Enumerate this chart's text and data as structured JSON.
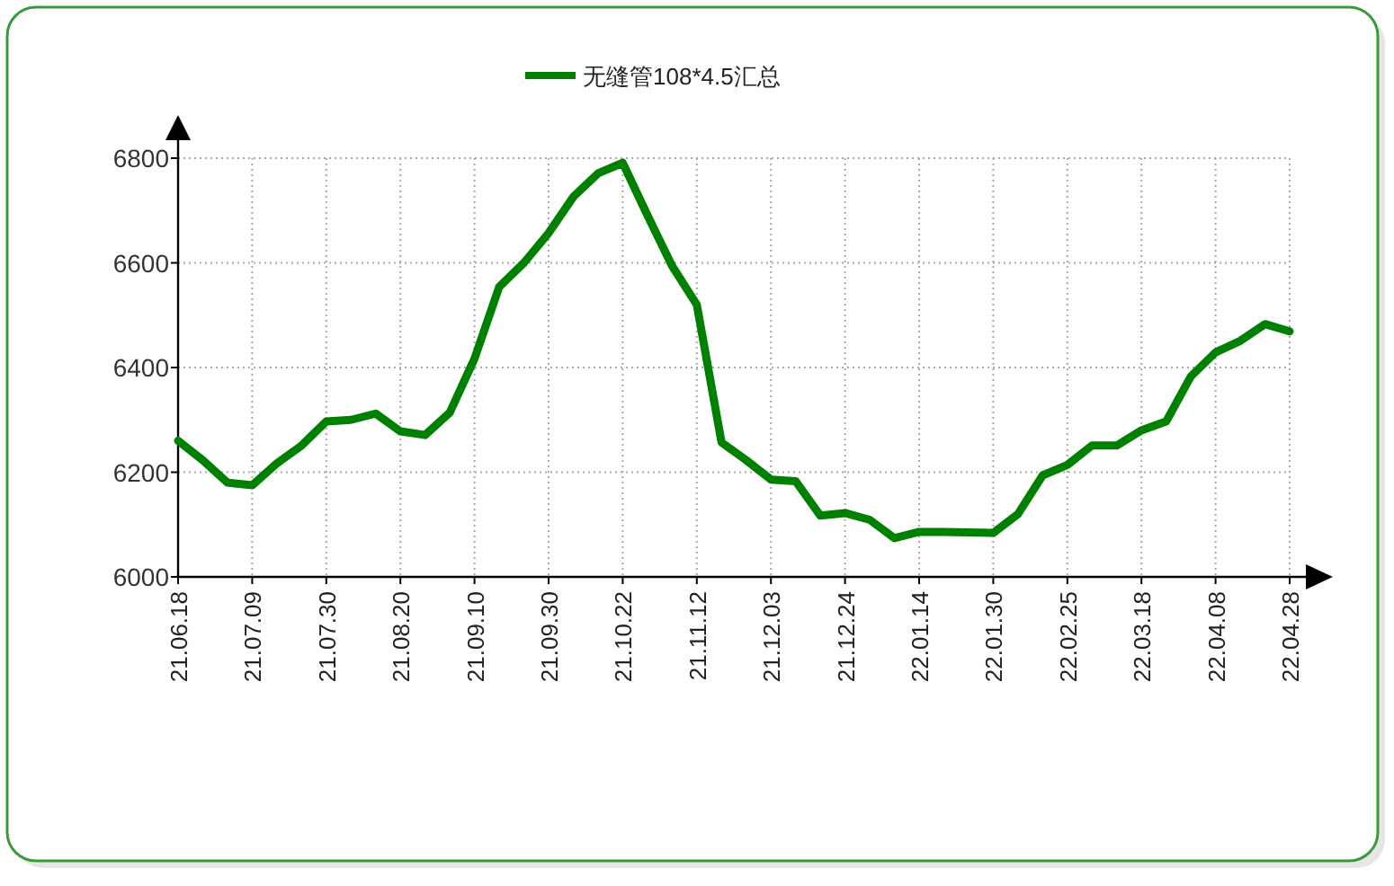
{
  "chart_data": {
    "type": "line",
    "categories": [
      "21.06.18",
      null,
      null,
      "21.07.09",
      null,
      null,
      "21.07.30",
      null,
      null,
      "21.08.20",
      null,
      null,
      "21.09.10",
      null,
      null,
      "21.09.30",
      null,
      null,
      "21.10.22",
      null,
      null,
      "21.11.12",
      null,
      null,
      "21.12.03",
      null,
      null,
      "21.12.24",
      null,
      null,
      "22.01.14",
      null,
      null,
      "22.01.30",
      null,
      null,
      "22.02.25",
      null,
      null,
      "22.03.18",
      null,
      null,
      "22.04.08",
      null,
      null,
      "22.04.28"
    ],
    "series": [
      {
        "name": "无缝管108*4.5汇总",
        "color": "#008000",
        "values": [
          6260,
          6223,
          6180,
          6175,
          6217,
          6251,
          6297,
          6300,
          6312,
          6278,
          6271,
          6314,
          6417,
          6554,
          6600,
          6657,
          6726,
          6771,
          6791,
          6691,
          6594,
          6520,
          6257,
          6223,
          6186,
          6183,
          6117,
          6122,
          6109,
          6074,
          6086,
          6086,
          6085,
          6084,
          6120,
          6194,
          6214,
          6251,
          6251,
          6280,
          6297,
          6383,
          6429,
          6451,
          6483,
          6469
        ]
      }
    ],
    "ylim": [
      6000,
      6800
    ],
    "yticks": [
      6000,
      6200,
      6400,
      6600,
      6800
    ],
    "grid": true,
    "legend": "top",
    "line_style": "solid"
  }
}
